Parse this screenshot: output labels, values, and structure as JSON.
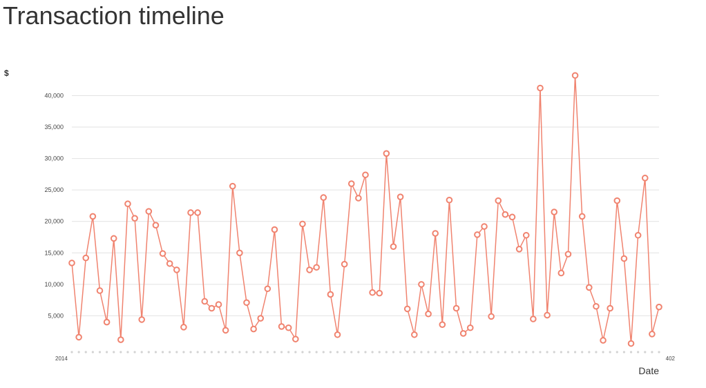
{
  "chart_data": {
    "type": "line",
    "title": "Transaction timeline",
    "xlabel": "Date",
    "ylabel": "$",
    "ylim": [
      0,
      44000
    ],
    "grid": true,
    "y_ticks": [
      5000,
      10000,
      15000,
      20000,
      25000,
      30000,
      35000,
      40000
    ],
    "y_tick_labels": [
      "5,000",
      "10,000",
      "15,000",
      "20,000",
      "25,000",
      "30,000",
      "35,000",
      "40,000"
    ],
    "x_tick_labels": [
      "2014"
    ],
    "x_tick_labels_last": [
      "402"
    ],
    "series": [
      {
        "color": "#f0836f",
        "values": [
          13400,
          1600,
          14200,
          20800,
          9000,
          4000,
          17300,
          1200,
          22800,
          20500,
          4400,
          21600,
          19400,
          14900,
          13300,
          12300,
          3200,
          21400,
          21400,
          7300,
          6200,
          6800,
          2700,
          25600,
          15000,
          7100,
          2900,
          4600,
          9300,
          18700,
          3300,
          3100,
          1300,
          19600,
          12300,
          12700,
          23800,
          8400,
          2000,
          13200,
          26000,
          23700,
          27400,
          8700,
          8600,
          30800,
          16000,
          23900,
          6100,
          2000,
          10000,
          5300,
          18100,
          3600,
          23400,
          6200,
          2200,
          3100,
          17900,
          19200,
          4900,
          23300,
          21100,
          20700,
          15600,
          17800,
          4500,
          41200,
          5100,
          21500,
          11800,
          14800,
          43200,
          20800,
          9500,
          6500,
          1100,
          6200,
          23300,
          14100,
          600,
          17800,
          26900,
          2100,
          6400
        ]
      }
    ]
  }
}
